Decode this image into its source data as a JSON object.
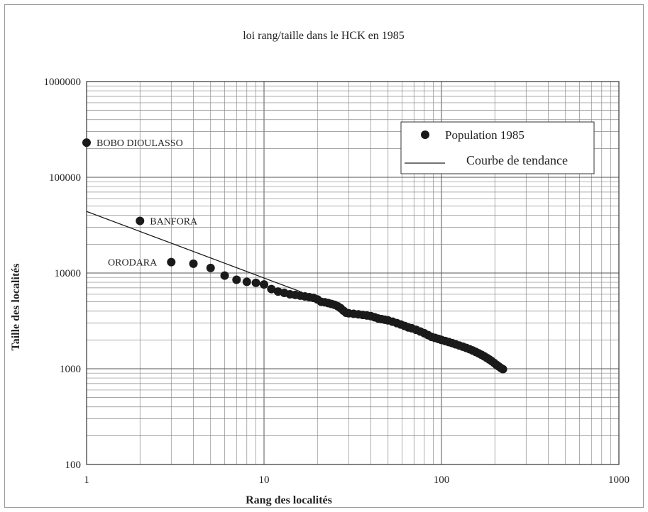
{
  "chart_data": {
    "type": "scatter",
    "title": "loi rang/taille dans le HCK en 1985",
    "xlabel": "Rang des localités",
    "ylabel": "Taille des localités",
    "x_scale": "log",
    "y_scale": "log",
    "xlim": [
      1,
      1000
    ],
    "ylim": [
      100,
      1000000
    ],
    "x_ticks": [
      "1",
      "10",
      "100",
      "1000"
    ],
    "y_ticks": [
      "100",
      "1000",
      "10000",
      "100000",
      "1000000"
    ],
    "grid": true,
    "legend_position": "top-right",
    "legend": [
      "Population 1985",
      "Courbe de tendance"
    ],
    "series": [
      {
        "name": "Population 1985",
        "kind": "points",
        "points": [
          [
            1,
            230000
          ],
          [
            2,
            35000
          ],
          [
            3,
            13000
          ],
          [
            4,
            12500
          ],
          [
            5,
            11300
          ],
          [
            6,
            9400
          ],
          [
            7,
            8500
          ],
          [
            8,
            8100
          ],
          [
            9,
            7900
          ],
          [
            10,
            7600
          ],
          [
            11,
            6800
          ],
          [
            12,
            6400
          ],
          [
            13,
            6200
          ],
          [
            14,
            6000
          ],
          [
            15,
            5900
          ],
          [
            16,
            5800
          ],
          [
            17,
            5700
          ],
          [
            18,
            5600
          ],
          [
            19,
            5500
          ],
          [
            20,
            5300
          ],
          [
            21,
            5000
          ],
          [
            22,
            4950
          ],
          [
            23,
            4850
          ],
          [
            24,
            4750
          ],
          [
            25,
            4650
          ],
          [
            26,
            4500
          ],
          [
            27,
            4300
          ],
          [
            28,
            4050
          ],
          [
            29,
            3850
          ],
          [
            30,
            3800
          ],
          [
            32,
            3750
          ],
          [
            34,
            3700
          ],
          [
            36,
            3650
          ],
          [
            38,
            3600
          ],
          [
            40,
            3550
          ],
          [
            42,
            3450
          ],
          [
            44,
            3350
          ],
          [
            46,
            3300
          ],
          [
            48,
            3250
          ],
          [
            50,
            3200
          ],
          [
            53,
            3100
          ],
          [
            56,
            3000
          ],
          [
            59,
            2900
          ],
          [
            62,
            2800
          ],
          [
            65,
            2700
          ],
          [
            68,
            2650
          ],
          [
            72,
            2550
          ],
          [
            76,
            2450
          ],
          [
            80,
            2350
          ],
          [
            84,
            2250
          ],
          [
            88,
            2150
          ],
          [
            92,
            2100
          ],
          [
            96,
            2050
          ],
          [
            100,
            2000
          ],
          [
            105,
            1950
          ],
          [
            110,
            1900
          ],
          [
            115,
            1850
          ],
          [
            120,
            1800
          ],
          [
            126,
            1750
          ],
          [
            132,
            1700
          ],
          [
            138,
            1650
          ],
          [
            144,
            1600
          ],
          [
            150,
            1550
          ],
          [
            156,
            1500
          ],
          [
            162,
            1450
          ],
          [
            168,
            1400
          ],
          [
            174,
            1350
          ],
          [
            180,
            1300
          ],
          [
            186,
            1250
          ],
          [
            192,
            1200
          ],
          [
            198,
            1150
          ],
          [
            204,
            1100
          ],
          [
            210,
            1060
          ],
          [
            216,
            1020
          ],
          [
            222,
            990
          ]
        ]
      },
      {
        "name": "Courbe de tendance",
        "kind": "line",
        "points": [
          [
            1,
            44000
          ],
          [
            16,
            6400
          ]
        ]
      }
    ],
    "annotations": [
      {
        "text": "BOBO DIOULASSO",
        "x": 1,
        "y": 230000
      },
      {
        "text": "BANFORA",
        "x": 2,
        "y": 35000
      },
      {
        "text": "ORODARA",
        "x": 3,
        "y": 13000
      }
    ]
  }
}
